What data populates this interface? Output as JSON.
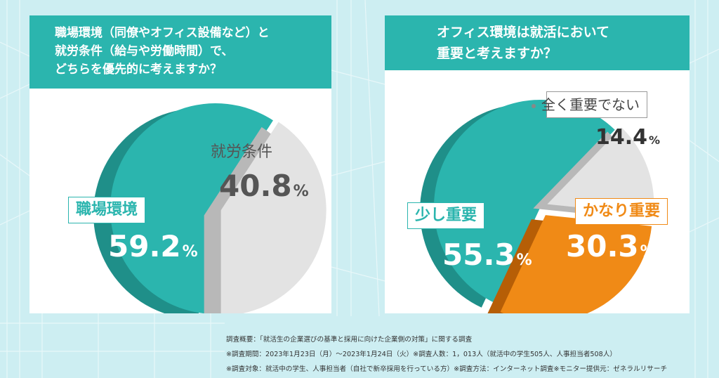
{
  "chart_data": [
    {
      "type": "pie",
      "title": "職場環境（同僚やオフィス設備など）と\n就労条件（給与や労働時間）で、\nどちらを優先的に考えますか？",
      "title_lines": [
        "職場環境（同僚やオフィス設備など）と",
        "就労条件（給与や労働時間）で、",
        "どちらを優先的に考えますか？"
      ],
      "slices": [
        {
          "label": "職場環境",
          "value": 59.2,
          "value_text": "59.2",
          "color": "#2bb5ae"
        },
        {
          "label": "就労条件",
          "value": 40.8,
          "value_text": "40.8",
          "color": "#e3e3e3"
        }
      ]
    },
    {
      "type": "pie",
      "title": "オフィス環境は就活において\n重要と考えますか？",
      "title_lines": [
        "オフィス環境は就活において",
        "重要と考えますか？"
      ],
      "slices": [
        {
          "label": "少し重要",
          "value": 55.3,
          "value_text": "55.3",
          "color": "#2bb5ae"
        },
        {
          "label": "全く重要でない",
          "value": 14.4,
          "value_text": "14.4",
          "color": "#e3e3e3"
        },
        {
          "label": "かなり重要",
          "value": 30.3,
          "value_text": "30.3",
          "color": "#f08a16"
        }
      ]
    }
  ],
  "percent_sign": "%",
  "footer": {
    "line1": "調査概要：「就活生の企業選びの基準と採用に向けた企業側の対策」に関する調査",
    "line2": "※調査期間：2023年1月23日（月）～2023年1月24日（火）※調査人数：1，013人（就活中の学生505人、人事担当者508人）",
    "line3": "※調査対象：就活中の学生、人事担当者（自社で新卒採用を行っている方）※調査方法：インターネット調査※モニター提供元：ゼネラルリサーチ"
  },
  "colors": {
    "teal": "#2bb5ae",
    "teal_dark": "#1f8f89",
    "gray": "#e3e3e3",
    "gray_dark": "#b8b8b8",
    "orange": "#f08a16",
    "orange_dark": "#b65e06",
    "background": "#cdeef2"
  }
}
